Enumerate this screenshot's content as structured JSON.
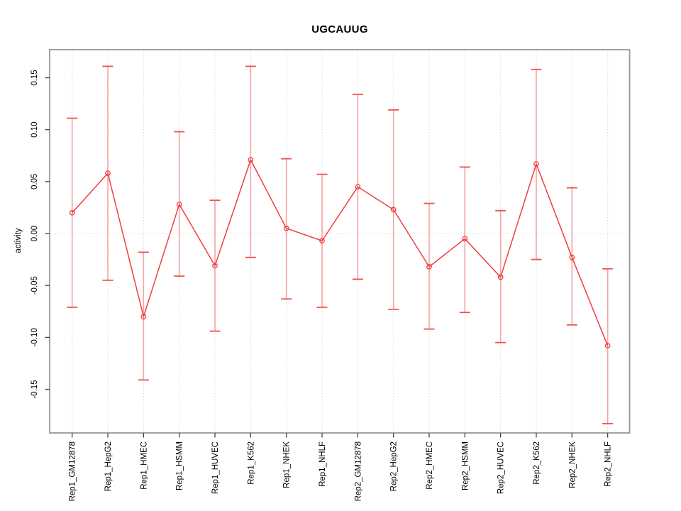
{
  "figure": {
    "title": "UGCAUUG",
    "ylabel": "activity"
  },
  "chart_data": {
    "type": "line",
    "title": "UGCAUUG",
    "xlabel": "",
    "ylabel": "activity",
    "legend_position": "none",
    "point_marker": "open-circle",
    "error_bars": true,
    "categories": [
      "Rep1_GM12878",
      "Rep1_HepG2",
      "Rep1_HMEC",
      "Rep1_HSMM",
      "Rep1_HUVEC",
      "Rep1_K562",
      "Rep1_NHEK",
      "Rep1_NHLF",
      "Rep2_GM12878",
      "Rep2_HepG2",
      "Rep2_HMEC",
      "Rep2_HSMM",
      "Rep2_HUVEC",
      "Rep2_K562",
      "Rep2_NHEK",
      "Rep2_NHLF"
    ],
    "series": [
      {
        "name": "activity",
        "values": [
          0.02,
          0.058,
          -0.08,
          0.028,
          -0.031,
          0.071,
          0.005,
          -0.007,
          0.045,
          0.023,
          -0.032,
          -0.005,
          -0.042,
          0.067,
          -0.023,
          -0.108
        ],
        "error_high": [
          0.111,
          0.161,
          -0.018,
          0.098,
          0.032,
          0.161,
          0.072,
          0.057,
          0.134,
          0.119,
          0.029,
          0.064,
          0.022,
          0.158,
          0.044,
          -0.034
        ],
        "error_low": [
          -0.071,
          -0.045,
          -0.141,
          -0.041,
          -0.094,
          -0.023,
          -0.063,
          -0.071,
          -0.044,
          -0.073,
          -0.092,
          -0.076,
          -0.105,
          -0.025,
          -0.088,
          -0.183
        ]
      }
    ],
    "yticks": [
      -0.15,
      -0.1,
      -0.05,
      0.0,
      0.05,
      0.1,
      0.15
    ],
    "ytick_labels": [
      "-0.15",
      "-0.10",
      "-0.05",
      "0.00",
      "0.05",
      "0.10",
      "0.15"
    ],
    "ylim": [
      -0.192,
      0.177
    ],
    "grid": {
      "vertical_per_category": true,
      "horizontal_zero_line": true,
      "style": "dotted"
    },
    "colors": {
      "series": "#f23d3d",
      "error_bar": "#f7a1a1",
      "error_cap": "#ee5252",
      "grid": "#d9d9d9",
      "box": "#979797",
      "tick": "#454545",
      "label": "#000000",
      "background": "#ffffff"
    }
  }
}
